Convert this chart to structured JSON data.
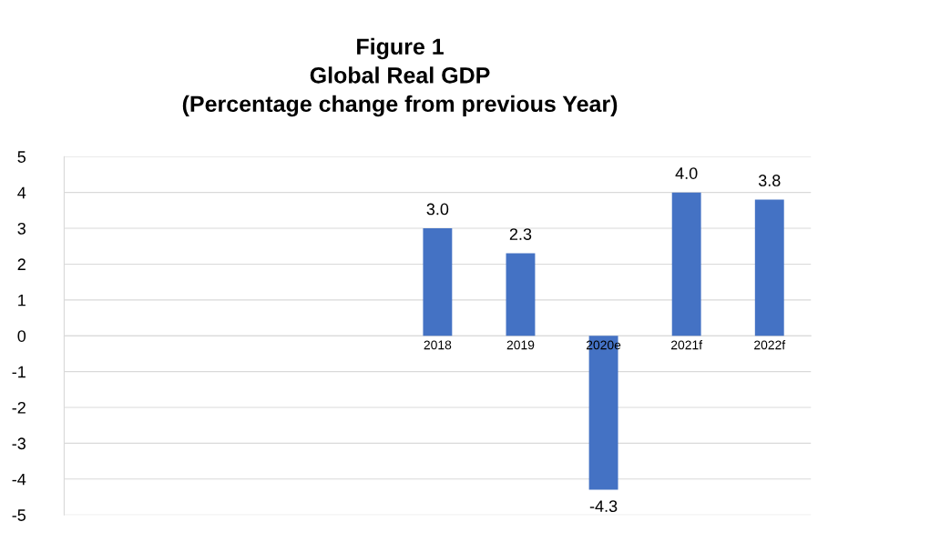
{
  "chart_data": {
    "type": "bar",
    "title": "Figure 1\nGlobal Real GDP\n(Percentage change from previous Year)",
    "categories": [
      null,
      null,
      null,
      null,
      "2018",
      "2019",
      "2020e",
      "2021f",
      "2022f"
    ],
    "series": [
      {
        "color": "#4472c4",
        "values": [
          null,
          null,
          null,
          null,
          3.0,
          2.3,
          -4.3,
          4.0,
          3.8
        ],
        "value_labels": [
          null,
          null,
          null,
          null,
          "3.0",
          "2.3",
          "-4.3",
          "4.0",
          "3.8"
        ]
      }
    ],
    "ylim": [
      -5,
      5
    ],
    "yticks": [
      {
        "value": -5,
        "label": "-5"
      },
      {
        "value": -4,
        "label": "-4"
      },
      {
        "value": -3,
        "label": "-3"
      },
      {
        "value": -2,
        "label": "-2"
      },
      {
        "value": -1,
        "label": "-1"
      },
      0,
      1,
      2,
      3,
      4,
      5
    ],
    "grid": "y",
    "legend": false
  }
}
